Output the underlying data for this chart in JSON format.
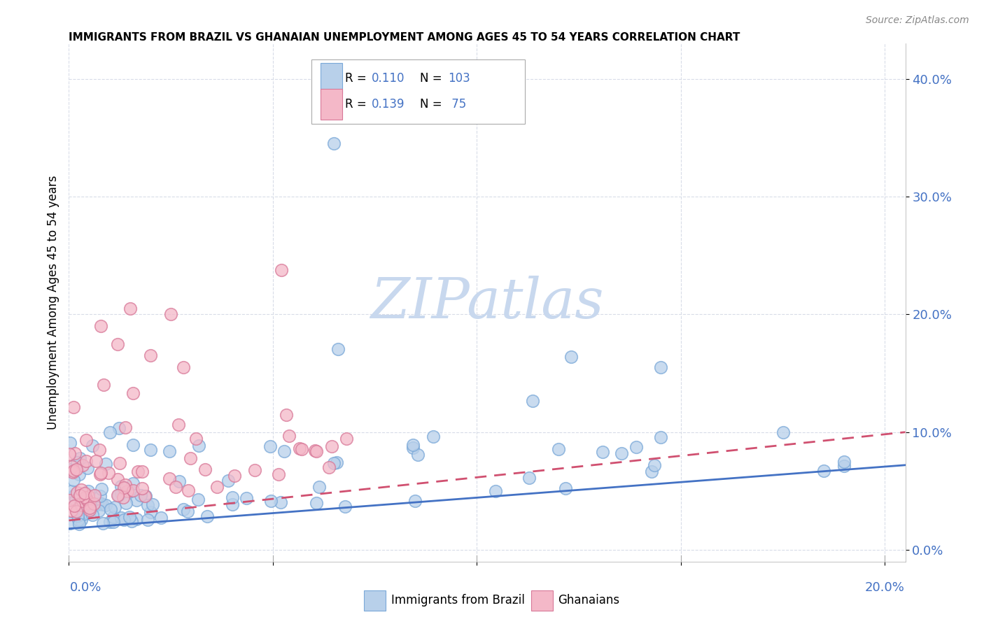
{
  "title": "IMMIGRANTS FROM BRAZIL VS GHANAIAN UNEMPLOYMENT AMONG AGES 45 TO 54 YEARS CORRELATION CHART",
  "source": "Source: ZipAtlas.com",
  "ylabel": "Unemployment Among Ages 45 to 54 years",
  "ytick_vals": [
    0.0,
    0.1,
    0.2,
    0.3,
    0.4
  ],
  "ytick_labels": [
    "0.0%",
    "10.0%",
    "20.0%",
    "30.0%",
    "40.0%"
  ],
  "xtick_labels": [
    "0.0%",
    "20.0%"
  ],
  "xlim": [
    0.0,
    0.205
  ],
  "ylim": [
    -0.01,
    0.43
  ],
  "color_brazil_fill": "#b8d0ea",
  "color_brazil_edge": "#7aa8d8",
  "color_ghana_fill": "#f4b8c8",
  "color_ghana_edge": "#d87898",
  "color_blue_text": "#4472c4",
  "color_trendline_brazil": "#4472c4",
  "color_trendline_ghana": "#d05070",
  "watermark_color": "#c8d8ee",
  "legend_brazil_r": "0.110",
  "legend_brazil_n": "103",
  "legend_ghana_r": "0.139",
  "legend_ghana_n": "75",
  "grid_color": "#d8dce8",
  "brazil_seed": 12345,
  "ghana_seed": 67890
}
